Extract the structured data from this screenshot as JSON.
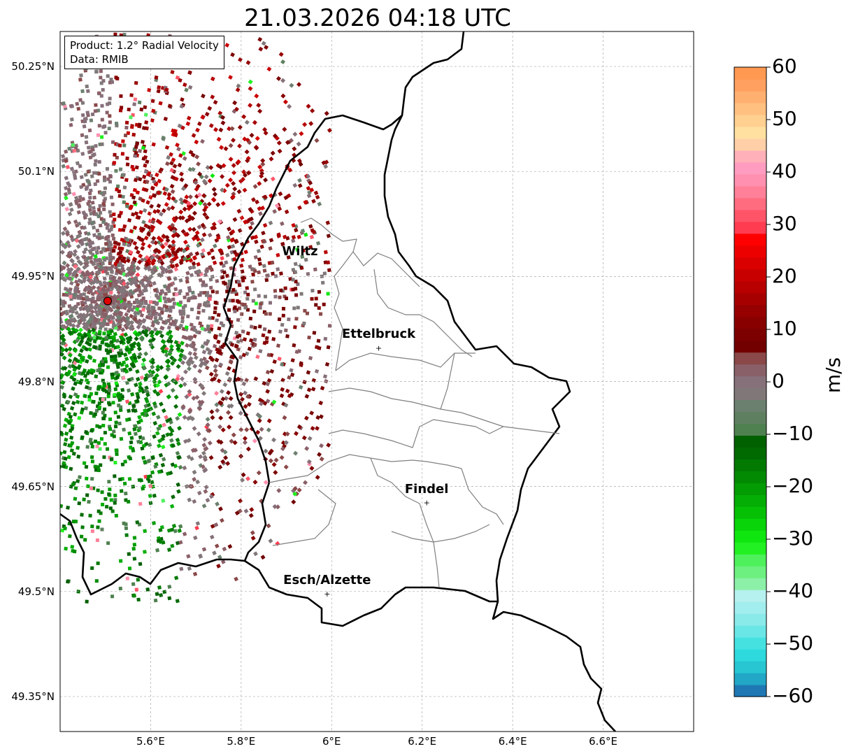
{
  "title": "21.03.2026 04:18 UTC",
  "info": {
    "product": "Product: 1.2° Radial Velocity",
    "source": "Data: RMIB"
  },
  "map": {
    "lon_range": [
      5.4,
      6.8
    ],
    "lat_range": [
      49.3,
      50.3
    ],
    "grid": true,
    "lon_ticks": [
      "5.6°E",
      "5.8°E",
      "6°E",
      "6.2°E",
      "6.4°E",
      "6.6°E"
    ],
    "lat_ticks": [
      "49.35°N",
      "49.5°N",
      "49.65°N",
      "49.8°N",
      "49.95°N",
      "50.1°N",
      "50.25°N"
    ],
    "radar_site": {
      "lon": 5.505,
      "lat": 49.915,
      "color": "#e00000"
    },
    "cities": [
      {
        "name": "Wiltz",
        "lon": 5.93,
        "lat": 49.966
      },
      {
        "name": "Ettelbruck",
        "lon": 6.104,
        "lat": 49.848
      },
      {
        "name": "Findel",
        "lon": 6.21,
        "lat": 49.627
      },
      {
        "name": "Esch/Alzette",
        "lon": 5.99,
        "lat": 49.497
      }
    ]
  },
  "colorbar": {
    "unit": "m/s",
    "range": [
      -60,
      60
    ],
    "tick_labels": [
      "60",
      "50",
      "40",
      "30",
      "20",
      "10",
      "0",
      "−10",
      "−20",
      "−30",
      "−40",
      "−50",
      "−60"
    ],
    "colors": [
      "#1f78b4",
      "#22a7c6",
      "#27c6d2",
      "#2dd9dc",
      "#45e1e1",
      "#6ae6e6",
      "#8ae9e9",
      "#a2eded",
      "#b6f0ef",
      "#8cf0a8",
      "#6df07f",
      "#4ef05c",
      "#22f022",
      "#0fe60f",
      "#09d309",
      "#06c006",
      "#04ae04",
      "#039c03",
      "#028b02",
      "#027a02",
      "#016a01",
      "#016000",
      "#4f8050",
      "#5f8060",
      "#6c8070",
      "#807878",
      "#86707a",
      "#8a6068",
      "#8a4848",
      "#720000",
      "#7c0000",
      "#880000",
      "#960000",
      "#a60000",
      "#b80000",
      "#c80000",
      "#da0000",
      "#ec0000",
      "#ff0000",
      "#ff3c50",
      "#ff5468",
      "#ff6c80",
      "#ff8098",
      "#ff90b0",
      "#ff9cc0",
      "#ffb0b8",
      "#ffd0a8",
      "#ffe0a0",
      "#ffd090",
      "#ffc080",
      "#ffb070",
      "#ffa060",
      "#ff9850"
    ]
  }
}
